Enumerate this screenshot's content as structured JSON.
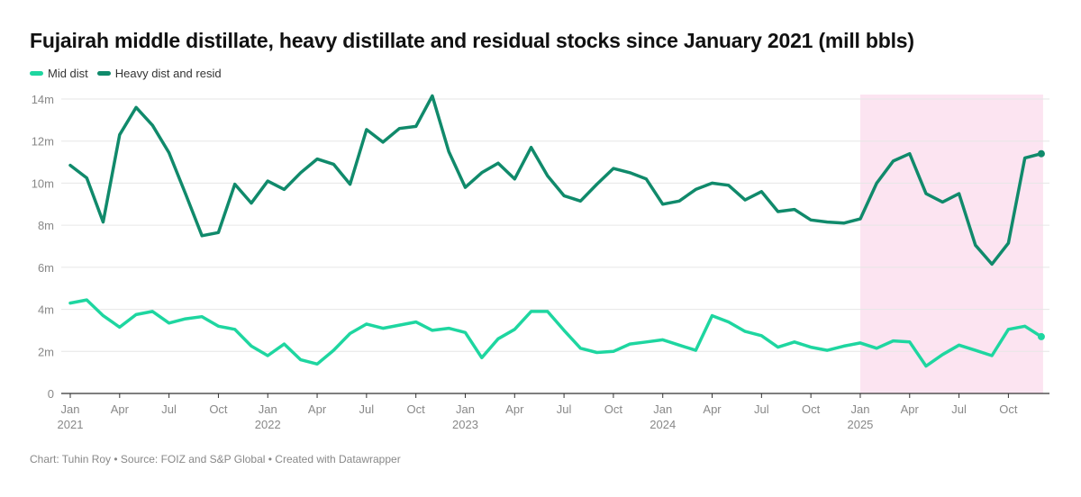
{
  "title": "Fujairah middle distillate, heavy distillate and residual stocks since January 2021 (mill bbls)",
  "footer": "Chart: Tuhin Roy • Source: FOIZ and S&P Global • Created with Datawrapper",
  "colors": {
    "mid": "#1ed6a0",
    "heavy": "#108a6b",
    "highlight": "#fce4f1",
    "grid": "#e6e6e6",
    "axis": "#333333"
  },
  "chart_data": {
    "type": "line",
    "title": "Fujairah middle distillate, heavy distillate and residual stocks since January 2021 (mill bbls)",
    "xlabel": "",
    "ylabel": "",
    "ylim": [
      0,
      14
    ],
    "yticks": [
      0,
      2,
      4,
      6,
      8,
      10,
      12,
      14
    ],
    "ytick_labels": [
      "0",
      "2m",
      "4m",
      "6m",
      "8m",
      "10m",
      "12m",
      "14m"
    ],
    "grid": true,
    "legend_position": "top-left",
    "x_start": "2021-01",
    "x_end": "2025-12",
    "xticks": [
      {
        "m": 0,
        "label": "Jan",
        "year": "2021"
      },
      {
        "m": 3,
        "label": "Apr"
      },
      {
        "m": 6,
        "label": "Jul"
      },
      {
        "m": 9,
        "label": "Oct"
      },
      {
        "m": 12,
        "label": "Jan",
        "year": "2022"
      },
      {
        "m": 15,
        "label": "Apr"
      },
      {
        "m": 18,
        "label": "Jul"
      },
      {
        "m": 21,
        "label": "Oct"
      },
      {
        "m": 24,
        "label": "Jan",
        "year": "2023"
      },
      {
        "m": 27,
        "label": "Apr"
      },
      {
        "m": 30,
        "label": "Jul"
      },
      {
        "m": 33,
        "label": "Oct"
      },
      {
        "m": 36,
        "label": "Jan",
        "year": "2024"
      },
      {
        "m": 39,
        "label": "Apr"
      },
      {
        "m": 42,
        "label": "Jul"
      },
      {
        "m": 45,
        "label": "Oct"
      },
      {
        "m": 48,
        "label": "Jan",
        "year": "2025"
      },
      {
        "m": 51,
        "label": "Apr"
      },
      {
        "m": 54,
        "label": "Jul"
      },
      {
        "m": 57,
        "label": "Oct"
      }
    ],
    "highlight_range": {
      "from": "2025-01",
      "to": "2025-12"
    },
    "series": [
      {
        "name": "Mid dist",
        "color": "#1ed6a0",
        "values": [
          4.3,
          4.45,
          3.7,
          3.15,
          3.75,
          3.9,
          3.35,
          3.55,
          3.65,
          3.2,
          3.05,
          2.25,
          1.8,
          2.35,
          1.6,
          1.4,
          2.05,
          2.85,
          3.3,
          3.1,
          3.25,
          3.4,
          3.0,
          3.1,
          2.9,
          1.7,
          2.6,
          3.05,
          3.9,
          3.9,
          3.0,
          2.15,
          1.95,
          2.0,
          2.35,
          2.45,
          2.55,
          2.3,
          2.05,
          3.7,
          3.4,
          2.95,
          2.75,
          2.2,
          2.45,
          2.2,
          2.05,
          2.25,
          2.4,
          2.15,
          2.5,
          2.45,
          1.3,
          1.85,
          2.3,
          2.05,
          1.8,
          3.05,
          3.2,
          2.7
        ]
      },
      {
        "name": "Heavy dist and resid",
        "color": "#108a6b",
        "values": [
          10.85,
          10.25,
          8.15,
          12.3,
          13.6,
          12.75,
          11.45,
          9.5,
          7.5,
          7.65,
          9.95,
          9.05,
          10.1,
          9.7,
          10.5,
          11.15,
          10.9,
          9.95,
          12.55,
          11.95,
          12.6,
          12.7,
          14.15,
          11.5,
          9.8,
          10.5,
          10.95,
          10.2,
          11.7,
          10.35,
          9.4,
          9.15,
          9.95,
          10.7,
          10.5,
          10.2,
          9.0,
          9.15,
          9.7,
          10.0,
          9.9,
          9.2,
          9.6,
          8.65,
          8.75,
          8.25,
          8.15,
          8.1,
          8.3,
          10.0,
          11.05,
          11.4,
          9.5,
          9.1,
          9.5,
          7.05,
          6.15,
          7.15,
          11.2,
          11.4
        ]
      }
    ]
  }
}
